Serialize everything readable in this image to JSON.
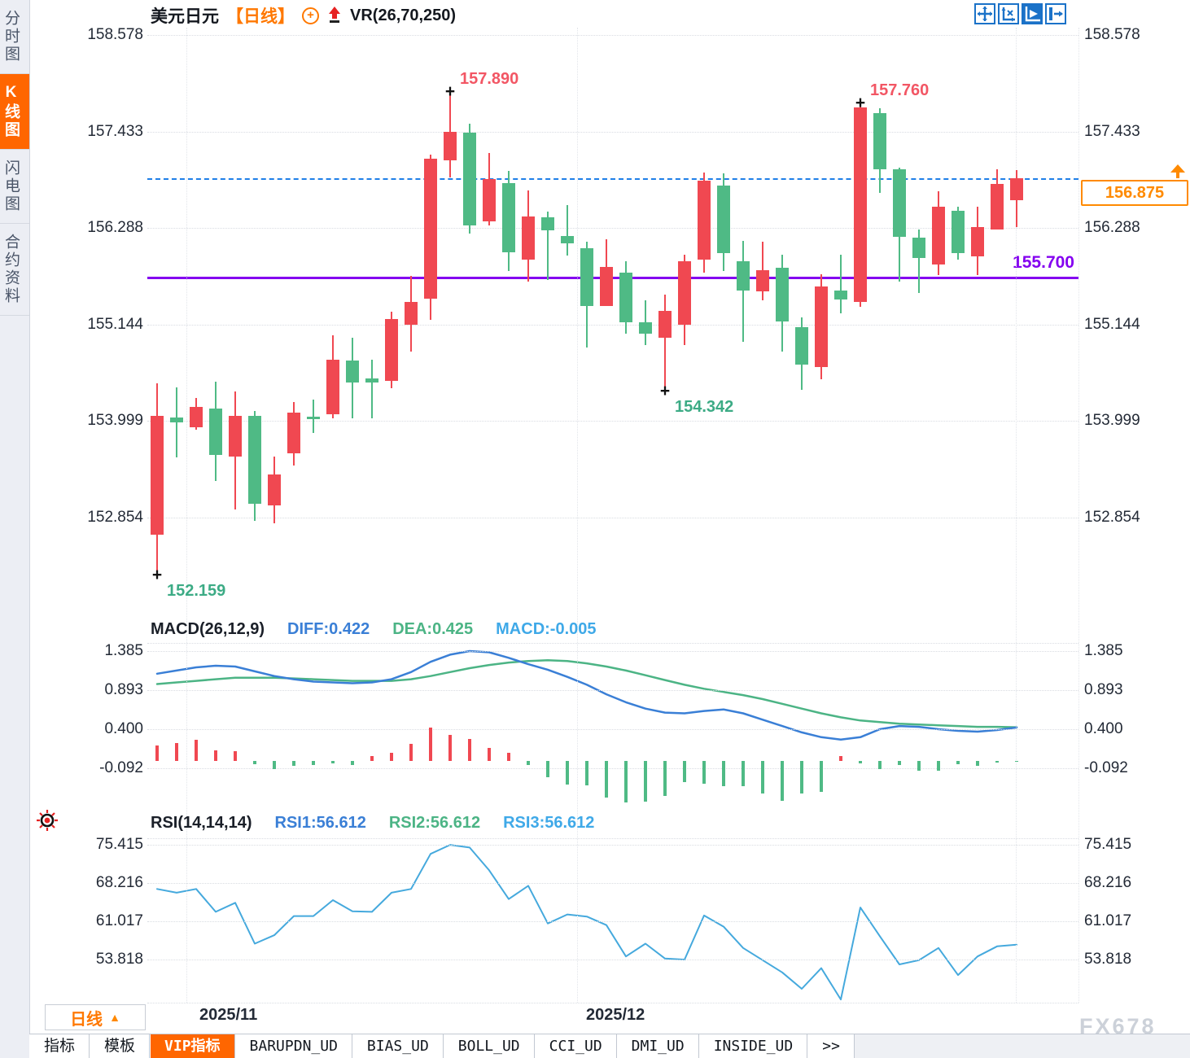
{
  "header": {
    "symbol": "美元日元",
    "period_tag": "【日线】",
    "add_icon": "+",
    "vr_label": "VR(26,70,250)",
    "toolbar_icons": [
      "move-crosshair-icon",
      "axis-scale-icon",
      "axis-play-icon",
      "exit-right-icon"
    ]
  },
  "sidebar": {
    "items": [
      {
        "label": "分时图",
        "active": false
      },
      {
        "label": "K线图",
        "active": true
      },
      {
        "label": "闪电图",
        "active": false
      },
      {
        "label": "合约资料",
        "active": false
      }
    ]
  },
  "price_tag": {
    "label": "156.875"
  },
  "period_button": {
    "label": "日线",
    "caret": "▲"
  },
  "xaxis": {
    "labels": [
      "2025/11",
      "2025/12"
    ]
  },
  "tabs": [
    {
      "label": "指标",
      "active": false
    },
    {
      "label": "模板",
      "active": false
    },
    {
      "label": "VIP指标",
      "active": true
    },
    {
      "label": "BARUPDN_UD",
      "active": false
    },
    {
      "label": "BIAS_UD",
      "active": false
    },
    {
      "label": "BOLL_UD",
      "active": false
    },
    {
      "label": "CCI_UD",
      "active": false
    },
    {
      "label": "DMI_UD",
      "active": false
    },
    {
      "label": "INSIDE_UD",
      "active": false
    },
    {
      "label": ">>",
      "active": false
    }
  ],
  "watermark": "FX678",
  "colors": {
    "up": "#f04851",
    "down": "#4fba85",
    "accent": "#ff6600",
    "dash_line": "#1f7fe8",
    "support_line": "#8400f0",
    "diff": "#3a7fd6",
    "dea": "#4cb485",
    "rsi": "#45a9dd",
    "annot_high": "#f25664",
    "annot_low": "#3cab85"
  },
  "chart_data": [
    {
      "type": "candlestick",
      "title": "美元日元 日线 (USD/JPY daily)",
      "y_ticks": [
        158.578,
        157.433,
        156.288,
        155.144,
        153.999,
        152.854
      ],
      "x_labels": [
        "2025/11",
        "2025/12"
      ],
      "ohlc": [
        [
          152.65,
          154.45,
          152.159,
          154.06
        ],
        [
          154.04,
          154.4,
          153.57,
          153.98
        ],
        [
          153.93,
          154.27,
          153.9,
          154.17
        ],
        [
          154.15,
          154.47,
          153.29,
          153.6
        ],
        [
          153.58,
          154.35,
          152.95,
          154.06
        ],
        [
          154.06,
          154.12,
          152.82,
          153.02
        ],
        [
          153.0,
          153.58,
          152.79,
          153.37
        ],
        [
          153.62,
          154.22,
          153.47,
          154.1
        ],
        [
          154.05,
          154.25,
          153.86,
          154.02
        ],
        [
          154.08,
          155.02,
          154.03,
          154.73
        ],
        [
          154.72,
          154.99,
          154.03,
          154.46
        ],
        [
          154.5,
          154.73,
          154.03,
          154.46
        ],
        [
          154.48,
          155.3,
          154.39,
          155.21
        ],
        [
          155.14,
          155.72,
          154.82,
          155.41
        ],
        [
          155.45,
          157.16,
          155.2,
          157.11
        ],
        [
          157.09,
          157.89,
          156.89,
          157.43
        ],
        [
          157.42,
          157.53,
          156.22,
          156.32
        ],
        [
          156.37,
          157.18,
          156.32,
          156.87
        ],
        [
          156.82,
          156.97,
          155.78,
          156.0
        ],
        [
          155.91,
          156.73,
          155.65,
          156.43
        ],
        [
          156.42,
          156.48,
          155.67,
          156.26
        ],
        [
          156.19,
          156.56,
          155.96,
          156.11
        ],
        [
          156.05,
          156.13,
          154.87,
          155.36
        ],
        [
          155.36,
          156.16,
          155.36,
          155.83
        ],
        [
          155.76,
          155.89,
          155.04,
          155.17
        ],
        [
          155.17,
          155.43,
          154.9,
          155.04
        ],
        [
          154.99,
          155.5,
          154.342,
          155.31
        ],
        [
          155.14,
          155.97,
          154.9,
          155.89
        ],
        [
          155.91,
          156.95,
          155.76,
          156.85
        ],
        [
          156.79,
          156.94,
          155.78,
          155.99
        ],
        [
          155.89,
          156.14,
          154.94,
          155.55
        ],
        [
          155.54,
          156.13,
          155.43,
          155.79
        ],
        [
          155.82,
          155.97,
          154.82,
          155.18
        ],
        [
          155.11,
          155.23,
          154.37,
          154.67
        ],
        [
          154.64,
          155.74,
          154.49,
          155.6
        ],
        [
          155.55,
          155.97,
          155.28,
          155.44
        ],
        [
          155.41,
          157.76,
          155.35,
          157.72
        ],
        [
          157.65,
          157.71,
          156.71,
          156.99
        ],
        [
          156.99,
          157.0,
          155.65,
          156.18
        ],
        [
          156.17,
          156.27,
          155.52,
          155.93
        ],
        [
          155.86,
          156.72,
          155.73,
          156.54
        ],
        [
          156.49,
          156.54,
          155.91,
          155.99
        ],
        [
          155.95,
          156.54,
          155.73,
          156.3
        ],
        [
          156.27,
          156.99,
          156.27,
          156.81
        ],
        [
          156.62,
          156.98,
          156.3,
          156.875
        ]
      ],
      "annotations": [
        {
          "index": 15,
          "price": 157.89,
          "text": "157.890",
          "kind": "high"
        },
        {
          "index": 36,
          "price": 157.76,
          "text": "157.760",
          "kind": "high"
        },
        {
          "index": 0,
          "price": 152.159,
          "text": "152.159",
          "kind": "low"
        },
        {
          "index": 26,
          "price": 154.342,
          "text": "154.342",
          "kind": "low"
        }
      ],
      "lines": {
        "last_price": 156.875,
        "support": 155.7
      },
      "support_label": "155.700"
    },
    {
      "type": "bar",
      "name": "MACD(26,12,9)",
      "legend": [
        "DIFF:0.422",
        "DEA:0.425",
        "MACD:-0.005"
      ],
      "y_ticks": [
        1.385,
        0.893,
        0.4,
        -0.092
      ],
      "values": [
        0.2,
        0.23,
        0.27,
        0.13,
        0.12,
        -0.04,
        -0.1,
        -0.06,
        -0.05,
        -0.03,
        -0.05,
        0.06,
        0.1,
        0.22,
        0.42,
        0.33,
        0.28,
        0.16,
        0.1,
        -0.05,
        -0.2,
        -0.3,
        -0.31,
        -0.46,
        -0.52,
        -0.51,
        -0.44,
        -0.27,
        -0.29,
        -0.32,
        -0.32,
        -0.41,
        -0.5,
        -0.41,
        -0.39,
        0.06,
        -0.03,
        -0.1,
        -0.05,
        -0.12,
        -0.12,
        -0.04,
        -0.06,
        -0.02,
        -0.005
      ],
      "series": [
        {
          "name": "DIFF",
          "values": [
            1.1,
            1.14,
            1.18,
            1.2,
            1.19,
            1.13,
            1.07,
            1.03,
            1.0,
            0.99,
            0.98,
            0.99,
            1.03,
            1.12,
            1.25,
            1.34,
            1.385,
            1.37,
            1.3,
            1.22,
            1.15,
            1.06,
            0.96,
            0.84,
            0.74,
            0.66,
            0.61,
            0.6,
            0.63,
            0.65,
            0.6,
            0.52,
            0.44,
            0.36,
            0.3,
            0.27,
            0.3,
            0.4,
            0.44,
            0.43,
            0.4,
            0.38,
            0.37,
            0.39,
            0.422
          ]
        },
        {
          "name": "DEA",
          "values": [
            0.97,
            0.99,
            1.01,
            1.03,
            1.05,
            1.05,
            1.05,
            1.04,
            1.03,
            1.02,
            1.01,
            1.01,
            1.01,
            1.03,
            1.07,
            1.12,
            1.17,
            1.21,
            1.24,
            1.26,
            1.27,
            1.26,
            1.23,
            1.19,
            1.14,
            1.08,
            1.02,
            0.96,
            0.91,
            0.87,
            0.83,
            0.78,
            0.72,
            0.66,
            0.6,
            0.55,
            0.51,
            0.49,
            0.47,
            0.46,
            0.45,
            0.44,
            0.43,
            0.43,
            0.425
          ]
        }
      ]
    },
    {
      "type": "line",
      "name": "RSI(14,14,14)",
      "legend": [
        "RSI1:56.612",
        "RSI2:56.612",
        "RSI3:56.612"
      ],
      "y_ticks": [
        75.415,
        68.216,
        61.017,
        53.818
      ],
      "values": [
        67.1,
        66.4,
        67.1,
        62.8,
        64.5,
        56.8,
        58.4,
        62.0,
        62.0,
        65.0,
        62.9,
        62.8,
        66.4,
        67.1,
        73.7,
        75.4,
        74.9,
        70.6,
        65.2,
        67.7,
        60.6,
        62.3,
        61.9,
        60.3,
        54.4,
        56.8,
        54.0,
        53.8,
        62.1,
        60.0,
        56.0,
        53.7,
        51.4,
        48.3,
        52.2,
        46.3,
        63.6,
        58.2,
        52.9,
        53.7,
        56.0,
        50.9,
        54.4,
        56.3,
        56.612
      ]
    }
  ]
}
